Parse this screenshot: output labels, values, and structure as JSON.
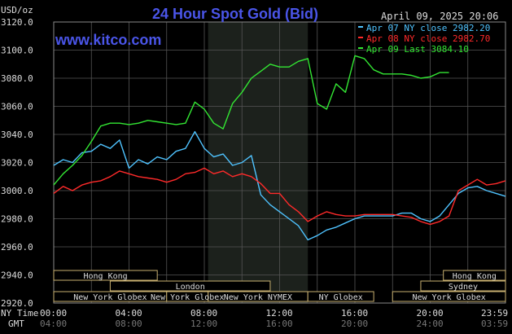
{
  "header": {
    "title": "24 Hour Spot Gold (Bid)",
    "unit": "USD/oz",
    "website": "www.kitco.com",
    "timestamp": "April 09, 2025 20:06"
  },
  "legend": [
    {
      "text": "Apr 07 NY close 2982.20",
      "color": "#4fc3ff"
    },
    {
      "text": "Apr 08 NY close 2982.70",
      "color": "#ff2a2a"
    },
    {
      "text": "Apr 09 Last 3084.10",
      "color": "#33e633"
    }
  ],
  "markets": [
    {
      "label": "Hong Kong",
      "from": 0,
      "to": 5.5
    },
    {
      "label": "London",
      "from": 3,
      "to": 11.5
    },
    {
      "label": "New York Globex",
      "from": 0,
      "to": 6
    },
    {
      "label": "New York NYMEX",
      "from": 8.2,
      "to": 13.5
    },
    {
      "label": "New York Globex",
      "from": 6,
      "to": 8.2
    },
    {
      "label": "NY Globex",
      "from": 13.5,
      "to": 17
    },
    {
      "label": "Hong Kong",
      "from": 20.7,
      "to": 24
    },
    {
      "label": "Sydney",
      "from": 19.5,
      "to": 24
    },
    {
      "label": "New York Globex",
      "from": 18,
      "to": 24
    }
  ],
  "axis": {
    "ny_time_label": "NY Time",
    "gmt_label": "GMT",
    "ny_ticks": [
      "00:00",
      "04:00",
      "08:00",
      "12:00",
      "16:00",
      "20:00",
      "23:59"
    ],
    "gmt_ticks": [
      "04:00",
      "08:00",
      "12:00",
      "16:00",
      "20:00",
      "24:00",
      "03:59"
    ]
  },
  "chart_data": {
    "type": "line",
    "title": "24 Hour Spot Gold (Bid)",
    "ylabel": "USD/oz",
    "xlabel": "NY Time",
    "xlim": [
      0,
      24
    ],
    "ylim": [
      2920,
      3120
    ],
    "yticks": [
      2920,
      2940,
      2960,
      2980,
      3000,
      3020,
      3040,
      3060,
      3080,
      3100,
      3120
    ],
    "ytick_labels": [
      "2920.0",
      "2940.0",
      "2960.0",
      "2980.0",
      "3000.0",
      "3020.0",
      "3040.0",
      "3060.0",
      "3080.0",
      "3100.0",
      "3120.0"
    ],
    "grid": true,
    "legend_position": "top-right",
    "series": [
      {
        "name": "Apr 07 NY close 2982.20",
        "color": "#4fc3ff",
        "points": [
          [
            0,
            3018
          ],
          [
            0.5,
            3022
          ],
          [
            1,
            3020
          ],
          [
            1.5,
            3027
          ],
          [
            2,
            3028
          ],
          [
            2.5,
            3033
          ],
          [
            3,
            3030
          ],
          [
            3.5,
            3036
          ],
          [
            4,
            3016
          ],
          [
            4.5,
            3022
          ],
          [
            5,
            3019
          ],
          [
            5.5,
            3024
          ],
          [
            6,
            3022
          ],
          [
            6.5,
            3028
          ],
          [
            7,
            3030
          ],
          [
            7.5,
            3042
          ],
          [
            8,
            3030
          ],
          [
            8.5,
            3024
          ],
          [
            9,
            3026
          ],
          [
            9.5,
            3018
          ],
          [
            10,
            3020
          ],
          [
            10.5,
            3025
          ],
          [
            11,
            2997
          ],
          [
            11.5,
            2990
          ],
          [
            12,
            2985
          ],
          [
            12.5,
            2980
          ],
          [
            13,
            2975
          ],
          [
            13.5,
            2965
          ],
          [
            14,
            2968
          ],
          [
            14.5,
            2972
          ],
          [
            15,
            2974
          ],
          [
            15.5,
            2977
          ],
          [
            16,
            2980
          ],
          [
            16.5,
            2982
          ],
          [
            17,
            2982
          ],
          [
            17.5,
            2982
          ],
          [
            18,
            2982
          ],
          [
            18.5,
            2984
          ],
          [
            19,
            2984
          ],
          [
            19.5,
            2980
          ],
          [
            20,
            2978
          ],
          [
            20.5,
            2982
          ],
          [
            21,
            2990
          ],
          [
            21.5,
            2998
          ],
          [
            22,
            3002
          ],
          [
            22.5,
            3003
          ],
          [
            23,
            3000
          ],
          [
            23.5,
            2998
          ],
          [
            24,
            2996
          ]
        ]
      },
      {
        "name": "Apr 08 NY close 2982.70",
        "color": "#ff2a2a",
        "points": [
          [
            0,
            2998
          ],
          [
            0.5,
            3003
          ],
          [
            1,
            3000
          ],
          [
            1.5,
            3004
          ],
          [
            2,
            3006
          ],
          [
            2.5,
            3007
          ],
          [
            3,
            3010
          ],
          [
            3.5,
            3014
          ],
          [
            4,
            3012
          ],
          [
            4.5,
            3010
          ],
          [
            5,
            3009
          ],
          [
            5.5,
            3008
          ],
          [
            6,
            3006
          ],
          [
            6.5,
            3008
          ],
          [
            7,
            3012
          ],
          [
            7.5,
            3013
          ],
          [
            8,
            3016
          ],
          [
            8.5,
            3012
          ],
          [
            9,
            3014
          ],
          [
            9.5,
            3010
          ],
          [
            10,
            3012
          ],
          [
            10.5,
            3010
          ],
          [
            11,
            3005
          ],
          [
            11.5,
            2998
          ],
          [
            12,
            2998
          ],
          [
            12.5,
            2990
          ],
          [
            13,
            2985
          ],
          [
            13.5,
            2978
          ],
          [
            14,
            2982
          ],
          [
            14.5,
            2985
          ],
          [
            15,
            2983
          ],
          [
            15.5,
            2982
          ],
          [
            16,
            2982
          ],
          [
            16.5,
            2983
          ],
          [
            17,
            2983
          ],
          [
            17.5,
            2983
          ],
          [
            18,
            2983
          ],
          [
            18.5,
            2982
          ],
          [
            19,
            2981
          ],
          [
            19.5,
            2978
          ],
          [
            20,
            2976
          ],
          [
            20.5,
            2978
          ],
          [
            21,
            2982
          ],
          [
            21.5,
            3000
          ],
          [
            22,
            3004
          ],
          [
            22.5,
            3008
          ],
          [
            23,
            3004
          ],
          [
            23.5,
            3005
          ],
          [
            24,
            3007
          ]
        ]
      },
      {
        "name": "Apr 09 Last 3084.10",
        "color": "#33e633",
        "points": [
          [
            0,
            3004
          ],
          [
            0.5,
            3012
          ],
          [
            1,
            3018
          ],
          [
            1.5,
            3025
          ],
          [
            2,
            3035
          ],
          [
            2.5,
            3046
          ],
          [
            3,
            3048
          ],
          [
            3.5,
            3048
          ],
          [
            4,
            3047
          ],
          [
            4.5,
            3048
          ],
          [
            5,
            3050
          ],
          [
            5.5,
            3049
          ],
          [
            6,
            3048
          ],
          [
            6.5,
            3047
          ],
          [
            7,
            3048
          ],
          [
            7.5,
            3063
          ],
          [
            8,
            3058
          ],
          [
            8.5,
            3048
          ],
          [
            9,
            3044
          ],
          [
            9.5,
            3062
          ],
          [
            10,
            3070
          ],
          [
            10.5,
            3080
          ],
          [
            11,
            3085
          ],
          [
            11.5,
            3090
          ],
          [
            12,
            3088
          ],
          [
            12.5,
            3088
          ],
          [
            13,
            3092
          ],
          [
            13.5,
            3094
          ],
          [
            14,
            3062
          ],
          [
            14.5,
            3058
          ],
          [
            15,
            3076
          ],
          [
            15.5,
            3070
          ],
          [
            16,
            3096
          ],
          [
            16.5,
            3094
          ],
          [
            17,
            3086
          ],
          [
            17.5,
            3083
          ],
          [
            18,
            3083
          ],
          [
            18.5,
            3083
          ],
          [
            19,
            3082
          ],
          [
            19.5,
            3080
          ],
          [
            20,
            3081
          ],
          [
            20.5,
            3084
          ],
          [
            21,
            3084
          ]
        ]
      }
    ]
  }
}
